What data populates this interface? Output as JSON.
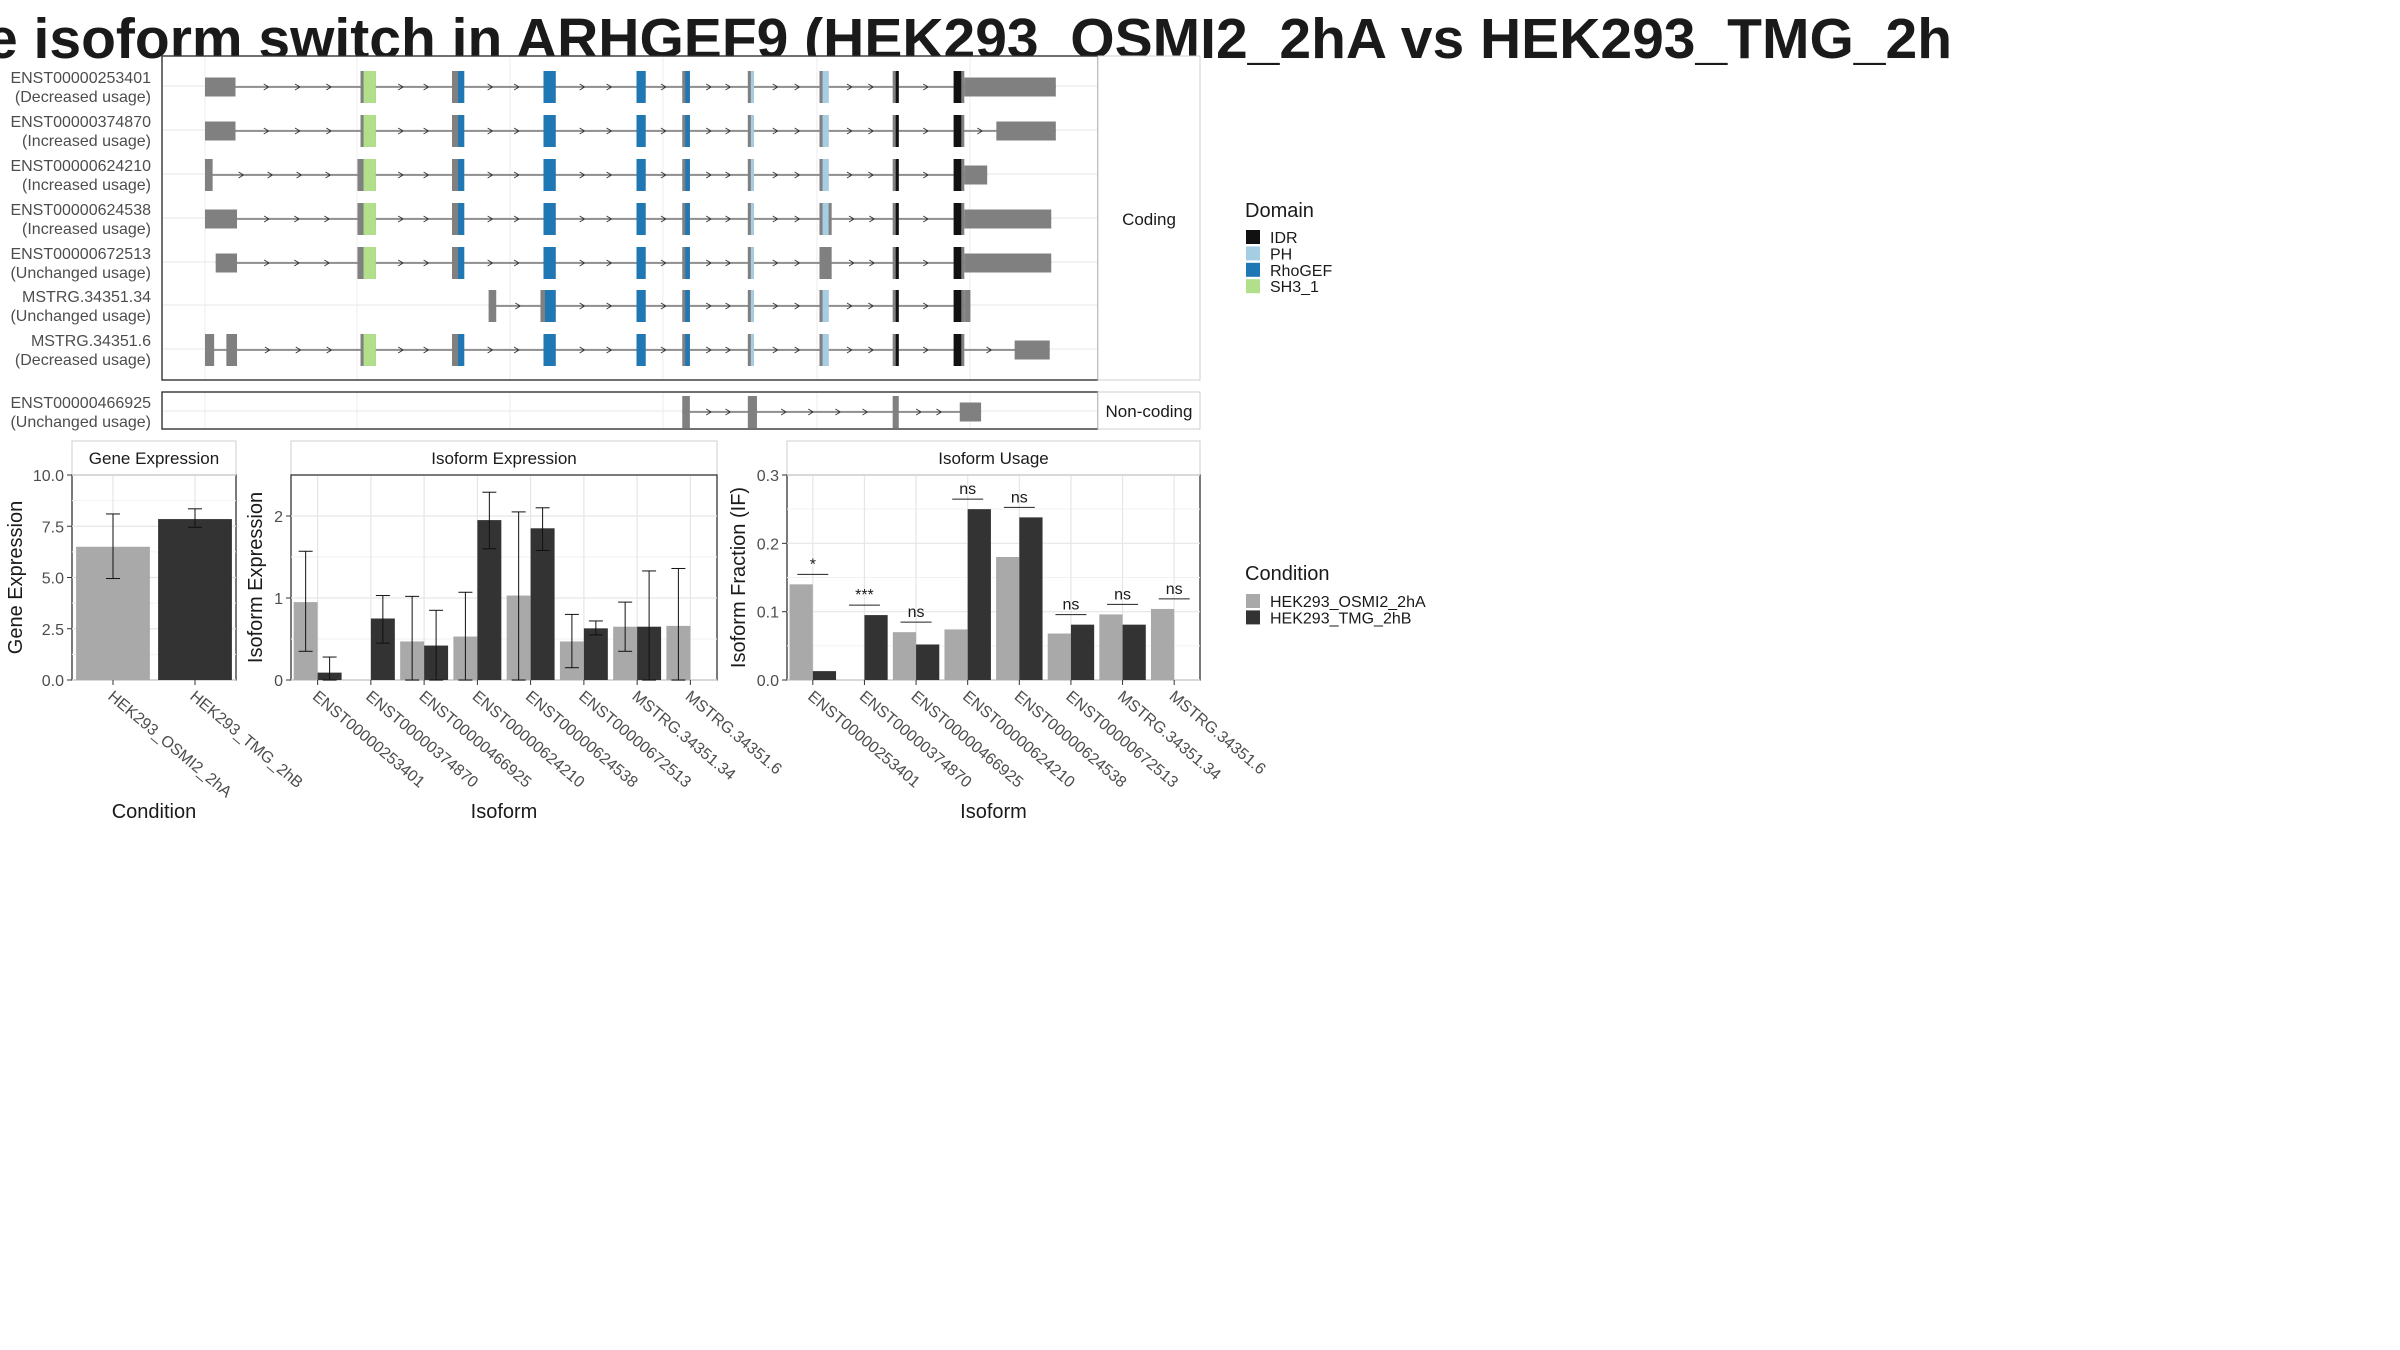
{
  "title": "e isoform switch in ARHGEF9 (HEK293_OSMI2_2hA vs HEK293_TMG_2h",
  "colors": {
    "IDR": "#111111",
    "PH": "#a6cee3",
    "RhoGEF": "#1f78b4",
    "SH3_1": "#b2df8a",
    "exon": "#808080",
    "cond_a": "#a9a9a9",
    "cond_b": "#333333"
  },
  "structure": {
    "facets": [
      "Coding",
      "Non-coding"
    ],
    "transcripts": [
      {
        "id": "ENST00000253401",
        "usage": "(Decreased usage)",
        "group": "Coding"
      },
      {
        "id": "ENST00000374870",
        "usage": "(Increased usage)",
        "group": "Coding"
      },
      {
        "id": "ENST00000624210",
        "usage": "(Increased usage)",
        "group": "Coding"
      },
      {
        "id": "ENST00000624538",
        "usage": "(Increased usage)",
        "group": "Coding"
      },
      {
        "id": "ENST00000672513",
        "usage": "(Unchanged usage)",
        "group": "Coding"
      },
      {
        "id": "MSTRG.34351.34",
        "usage": "(Unchanged usage)",
        "group": "Coding"
      },
      {
        "id": "MSTRG.34351.6",
        "usage": "(Decreased usage)",
        "group": "Coding"
      },
      {
        "id": "ENST00000466925",
        "usage": "(Unchanged usage)",
        "group": "Non-coding"
      }
    ]
  },
  "legends": {
    "domain_title": "Domain",
    "domains": [
      "IDR",
      "PH",
      "RhoGEF",
      "SH3_1"
    ],
    "condition_title": "Condition",
    "conditions": [
      "HEK293_OSMI2_2hA",
      "HEK293_TMG_2hB"
    ]
  },
  "chart_data": [
    {
      "type": "bar",
      "title": "Gene Expression",
      "xlabel": "Condition",
      "ylabel": "Gene Expression",
      "ylim": [
        0,
        10
      ],
      "yticks": [
        "0.0",
        "2.5",
        "5.0",
        "7.5",
        "10.0"
      ],
      "categories": [
        "HEK293_OSMI2_2hA",
        "HEK293_TMG_2hB"
      ],
      "values": [
        6.5,
        7.85
      ],
      "error": [
        [
          4.95,
          8.1
        ],
        [
          7.45,
          8.35
        ]
      ]
    },
    {
      "type": "bar",
      "title": "Isoform Expression",
      "xlabel": "Isoform",
      "ylabel": "Isoform Expression",
      "ylim": [
        0,
        2.5
      ],
      "yticks": [
        "0",
        "1",
        "2"
      ],
      "categories": [
        "ENST00000253401",
        "ENST00000374870",
        "ENST00000466925",
        "ENST00000624210",
        "ENST00000624538",
        "ENST00000672513",
        "MSTRG.34351.34",
        "MSTRG.34351.6"
      ],
      "series": [
        {
          "name": "HEK293_OSMI2_2hA",
          "values": [
            0.95,
            0,
            0.47,
            0.53,
            1.03,
            0.47,
            0.65,
            0.66
          ],
          "error": [
            [
              0.35,
              1.57
            ],
            null,
            [
              0,
              1.02
            ],
            [
              0,
              1.07
            ],
            [
              0,
              2.05
            ],
            [
              0.15,
              0.8
            ],
            [
              0.35,
              0.95
            ],
            [
              0,
              1.36
            ]
          ]
        },
        {
          "name": "HEK293_TMG_2hB",
          "values": [
            0.09,
            0.75,
            0.42,
            1.95,
            1.85,
            0.63,
            0.65,
            0
          ],
          "error": [
            [
              0,
              0.28
            ],
            [
              0.45,
              1.03
            ],
            [
              0,
              0.85
            ],
            [
              1.6,
              2.29
            ],
            [
              1.58,
              2.1
            ],
            [
              0.55,
              0.72
            ],
            [
              0,
              1.33
            ],
            null
          ]
        }
      ]
    },
    {
      "type": "bar",
      "title": "Isoform Usage",
      "xlabel": "Isoform",
      "ylabel": "Isoform Fraction (IF)",
      "ylim": [
        0,
        0.3
      ],
      "yticks": [
        "0.0",
        "0.1",
        "0.2",
        "0.3"
      ],
      "categories": [
        "ENST00000253401",
        "ENST00000374870",
        "ENST00000466925",
        "ENST00000624210",
        "ENST00000624538",
        "ENST00000672513",
        "MSTRG.34351.34",
        "MSTRG.34351.6"
      ],
      "significance": [
        "*",
        "***",
        "ns",
        "ns",
        "ns",
        "ns",
        "ns",
        "ns"
      ],
      "series": [
        {
          "name": "HEK293_OSMI2_2hA",
          "values": [
            0.14,
            0,
            0.07,
            0.074,
            0.18,
            0.068,
            0.096,
            0.104
          ]
        },
        {
          "name": "HEK293_TMG_2hB",
          "values": [
            0.013,
            0.095,
            0.052,
            0.25,
            0.238,
            0.081,
            0.081,
            0
          ]
        }
      ]
    }
  ]
}
